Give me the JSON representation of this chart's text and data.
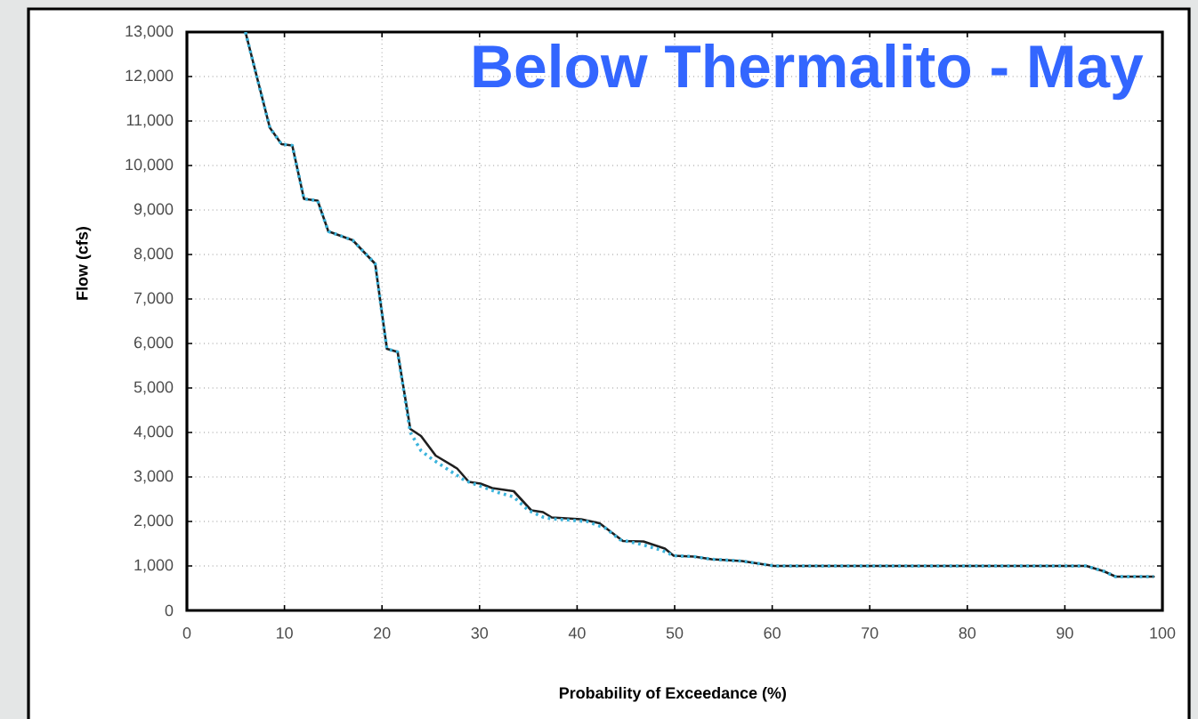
{
  "chart_data": {
    "type": "line",
    "title": "Below Thermalito - May",
    "xlabel": "Probability of Exceedance (%)",
    "ylabel": "Flow (cfs)",
    "xlim": [
      0,
      100
    ],
    "ylim": [
      0,
      13000
    ],
    "xticks": [
      0,
      10,
      20,
      30,
      40,
      50,
      60,
      70,
      80,
      90,
      100
    ],
    "yticks": [
      0,
      {
        "value": 1000,
        "label": "1,000"
      },
      {
        "value": 2000,
        "label": "2,000"
      },
      {
        "value": 3000,
        "label": "3,000"
      },
      {
        "value": 4000,
        "label": "4,000"
      },
      {
        "value": 5000,
        "label": "5,000"
      },
      {
        "value": 6000,
        "label": "6,000"
      },
      {
        "value": 7000,
        "label": "7,000"
      },
      {
        "value": 8000,
        "label": "8,000"
      },
      {
        "value": 9000,
        "label": "9,000"
      },
      {
        "value": 10000,
        "label": "10,000"
      },
      {
        "value": 11000,
        "label": "11,000"
      },
      {
        "value": 12000,
        "label": "12,000"
      },
      {
        "value": 13000,
        "label": "13,000"
      }
    ],
    "grid": true,
    "series": [
      {
        "color": "#1f1f1f",
        "line_style": "solid",
        "x": [
          6.0,
          8.5,
          9.7,
          10.8,
          12.0,
          13.4,
          14.5,
          17.0,
          19.3,
          20.5,
          21.6,
          22.9,
          24.0,
          25.5,
          27.7,
          28.9,
          30.1,
          31.3,
          33.5,
          35.3,
          36.5,
          37.4,
          40.4,
          42.3,
          44.7,
          46.8,
          49.0,
          49.9,
          52.0,
          53.8,
          56.9,
          59.3,
          60.2,
          92.2,
          94.0,
          95.2,
          99.1
        ],
        "values": [
          13000,
          10850,
          10480,
          10450,
          9250,
          9210,
          8520,
          8320,
          7790,
          5880,
          5810,
          4080,
          3920,
          3480,
          3190,
          2890,
          2850,
          2750,
          2680,
          2250,
          2210,
          2090,
          2050,
          1960,
          1560,
          1550,
          1390,
          1230,
          1210,
          1150,
          1110,
          1030,
          1000,
          1000,
          880,
          760,
          760
        ]
      },
      {
        "color": "#3cb4dc",
        "line_style": "dotted",
        "x": [
          6.0,
          8.5,
          9.7,
          10.8,
          12.0,
          13.4,
          14.5,
          17.0,
          19.3,
          20.5,
          21.6,
          22.9,
          24.0,
          25.2,
          28.5,
          30.0,
          31.9,
          33.5,
          35.0,
          36.5,
          37.4,
          41.0,
          42.9,
          44.4,
          46.5,
          48.7,
          49.9,
          52.0,
          53.8,
          56.9,
          59.3,
          60.2,
          92.2,
          94.0,
          95.2,
          99.1
        ],
        "values": [
          13000,
          10850,
          10480,
          10450,
          9250,
          9210,
          8520,
          8320,
          7790,
          5880,
          5810,
          4000,
          3590,
          3390,
          2920,
          2800,
          2650,
          2550,
          2250,
          2100,
          2060,
          2000,
          1850,
          1590,
          1490,
          1350,
          1230,
          1210,
          1150,
          1110,
          1030,
          1000,
          1000,
          880,
          760,
          760
        ]
      }
    ]
  }
}
